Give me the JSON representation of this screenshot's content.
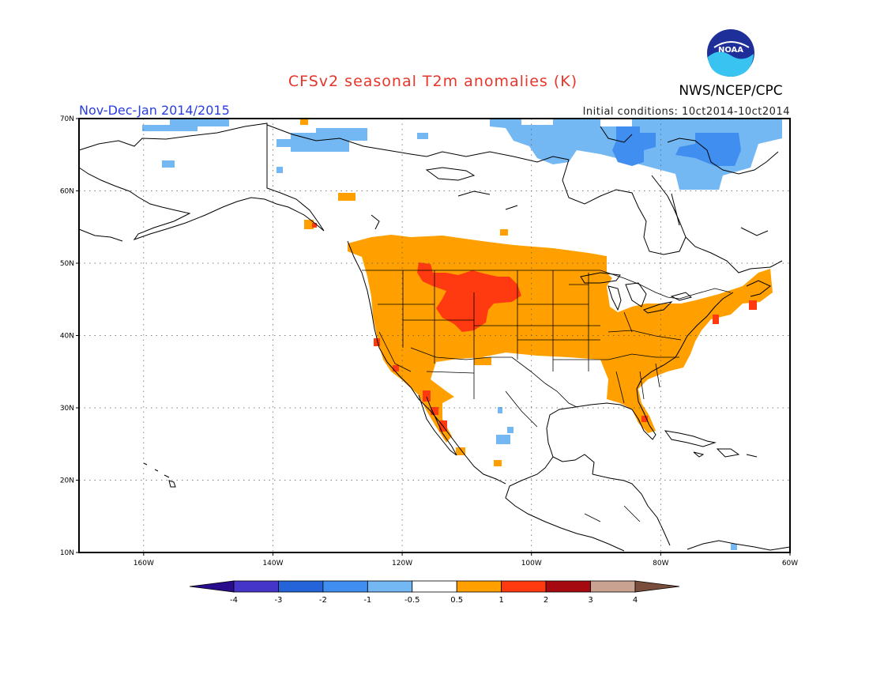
{
  "title": "CFSv2 seasonal T2m anomalies (K)",
  "subtitle": "Nov-Dec-Jan 2014/2015",
  "initial_conditions": "Initial conditions: 10ct2014-10ct2014",
  "agency": "NWS/NCEP/CPC",
  "logo_text": "NOAA",
  "map": {
    "lon_labels": [
      "160W",
      "140W",
      "120W",
      "100W",
      "80W",
      "60W"
    ],
    "lat_labels": [
      "70N",
      "60N",
      "50N",
      "40N",
      "30N",
      "20N",
      "10N"
    ],
    "lon_range": [
      -170,
      -60
    ],
    "lat_range": [
      10,
      70
    ]
  },
  "colorbar": {
    "tick_labels": [
      "-4",
      "-3",
      "-2",
      "-1",
      "-0.5",
      "0.5",
      "1",
      "2",
      "3",
      "4"
    ],
    "colors": [
      "#2a0d8c",
      "#4535c9",
      "#2463d8",
      "#3f8ef0",
      "#74b8f3",
      "#ffffff",
      "#ffa000",
      "#ff3a10",
      "#a50a10",
      "#c9a291",
      "#7a4e3c"
    ]
  }
}
